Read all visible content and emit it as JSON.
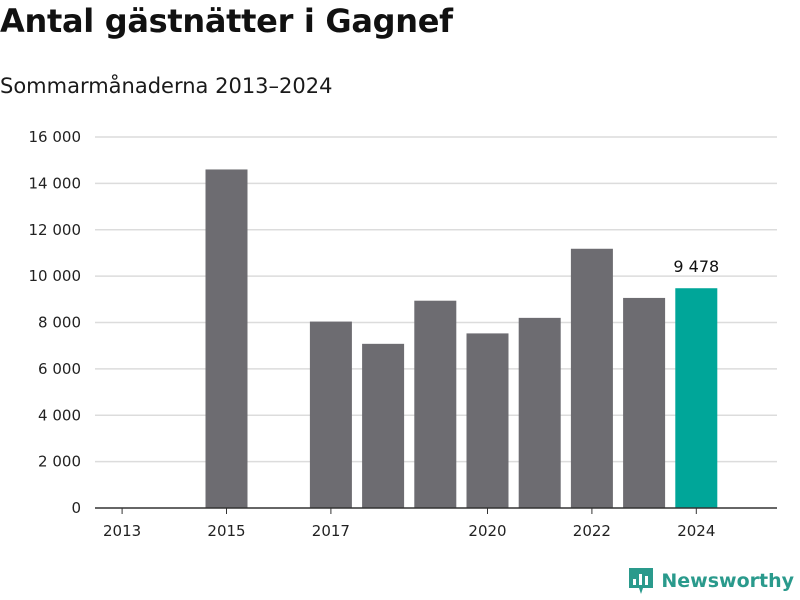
{
  "header": {
    "title": "Antal gästnätter i Gagnef",
    "subtitle": "Sommarmånaderna 2013–2024"
  },
  "brand": {
    "name": "Newsworthy",
    "icon": "bar-chart-logo-icon",
    "color": "#2a9a8c"
  },
  "chart_data": {
    "type": "bar",
    "title": "Antal gästnätter i Gagnef",
    "subtitle": "Sommarmånaderna 2013–2024",
    "xlabel": "",
    "ylabel": "",
    "ylim": [
      0,
      16000
    ],
    "grid": true,
    "legend": "none",
    "categories": [
      "2013",
      "2014",
      "2015",
      "2016",
      "2017",
      "2018",
      "2019",
      "2020",
      "2021",
      "2022",
      "2023",
      "2024"
    ],
    "values": [
      null,
      null,
      14600,
      null,
      8040,
      7080,
      8940,
      7530,
      8200,
      11180,
      9060,
      9478
    ],
    "x_tick_labels": [
      "2013",
      "",
      "2015",
      "",
      "2017",
      "",
      "",
      "2020",
      "",
      "2022",
      "",
      "2024"
    ],
    "y_ticks": [
      0,
      2000,
      4000,
      6000,
      8000,
      10000,
      12000,
      14000,
      16000
    ],
    "y_tick_labels": [
      "0",
      "2 000",
      "4 000",
      "6 000",
      "8 000",
      "10 000",
      "12 000",
      "14 000",
      "16 000"
    ],
    "highlight_index": 11,
    "data_labels": [
      {
        "index": 11,
        "text": "9 478"
      }
    ],
    "colors": {
      "bar": "#6d6c71",
      "highlight": "#00a699",
      "grid": "#dcdcdc",
      "axis": "#333333"
    }
  }
}
